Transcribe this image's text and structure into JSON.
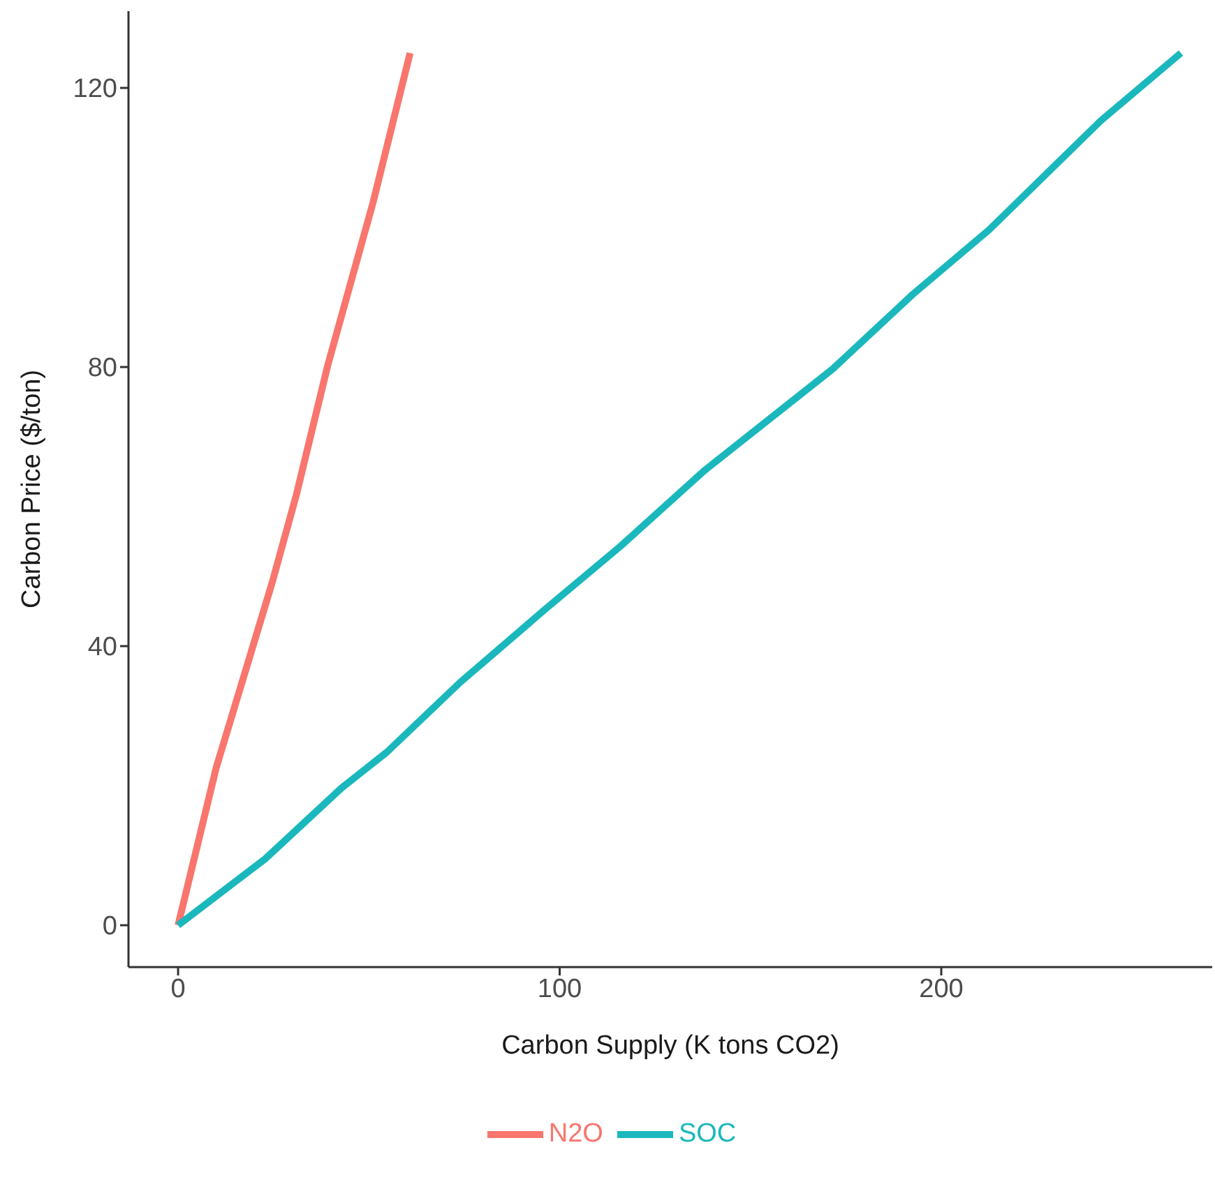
{
  "chart_data": {
    "type": "line",
    "xlabel": "Carbon Supply (K tons CO2)",
    "ylabel": "Carbon Price ($/ton)",
    "xlim": [
      -13,
      271
    ],
    "xticks": [
      0,
      100,
      200
    ],
    "ylim": [
      -6,
      131
    ],
    "yticks": [
      0,
      40,
      80,
      120
    ],
    "grid": false,
    "legend": "bottom",
    "marker": "none",
    "line_style": "solid",
    "series": [
      {
        "name": "N2O",
        "color": "#f8766d",
        "x": [
          0,
          10,
          24.6,
          31,
          39.2,
          51.1,
          60.8
        ],
        "values": [
          0,
          22.6,
          49,
          61.7,
          80.2,
          103.6,
          125
        ]
      },
      {
        "name": "SOC",
        "color": "#1ab8bc",
        "x": [
          0,
          22.8,
          42.9,
          54.7,
          73.9,
          95.8,
          115.9,
          137.8,
          171.5,
          192.5,
          212.6,
          241.8,
          262.8
        ],
        "values": [
          0,
          9.5,
          19.7,
          24.8,
          34.8,
          45.1,
          54.3,
          65.1,
          79.7,
          90.4,
          99.7,
          115.3,
          125
        ]
      }
    ]
  }
}
